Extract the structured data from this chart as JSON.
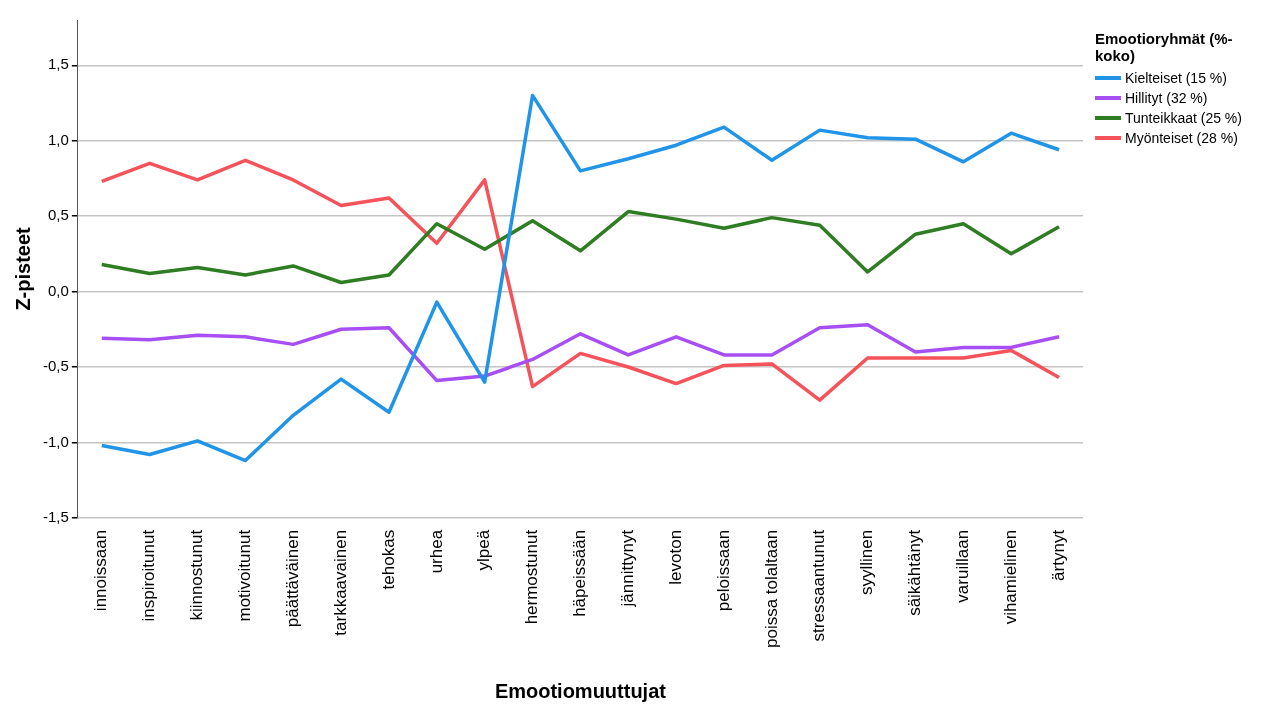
{
  "chart_data": {
    "type": "line",
    "xlabel": "Emootiomuuttujat",
    "ylabel": "Z-pisteet",
    "legend_title": "Emootioryhmät (%-koko)",
    "legend": "top right",
    "grid": "y",
    "marker": "none",
    "line_style": "solid",
    "categories": [
      "innoissaan",
      "inspiroitunut",
      "kiinnostunut",
      "motivoitunut",
      "päättäväinen",
      "tarkkaavainen",
      "tehokas",
      "urhea",
      "ylpeä",
      "hermostunut",
      "häpeissään",
      "jännittynyt",
      "levoton",
      "peloissaan",
      "poissa tolaltaan",
      "stressaantunut",
      "syyllinen",
      "säikähtänyt",
      "varuillaan",
      "vihamielinen",
      "ärtynyt"
    ],
    "ylim": [
      -1.5,
      1.8
    ],
    "yticks": [
      {
        "value": -1.5,
        "label": "-1,5"
      },
      {
        "value": -1,
        "label": "-1,0"
      },
      {
        "value": -0.5,
        "label": "-0,5"
      },
      {
        "value": 0,
        "label": "0,0"
      },
      {
        "value": 0.5,
        "label": "0,5"
      },
      {
        "value": 1,
        "label": "1,0"
      },
      {
        "value": 1.5,
        "label": "1,5"
      }
    ],
    "series": [
      {
        "name": "Kielteiset (15 %)",
        "color": "#1f94e8",
        "values": [
          -1.02,
          -1.08,
          -0.99,
          -1.12,
          -0.82,
          -0.58,
          -0.8,
          -0.07,
          -0.6,
          1.3,
          0.8,
          0.88,
          0.97,
          1.09,
          0.87,
          1.07,
          1.02,
          1.01,
          0.86,
          1.05,
          0.94
        ]
      },
      {
        "name": "Hillityt (32 %)",
        "color": "#a84ef5",
        "values": [
          -0.31,
          -0.32,
          -0.29,
          -0.3,
          -0.35,
          -0.25,
          -0.24,
          -0.59,
          -0.56,
          -0.45,
          -0.28,
          -0.42,
          -0.3,
          -0.42,
          -0.42,
          -0.24,
          -0.22,
          -0.4,
          -0.37,
          -0.37,
          -0.3
        ]
      },
      {
        "name": "Tunteikkaat (25 %)",
        "color": "#2e7d22",
        "values": [
          0.18,
          0.12,
          0.16,
          0.11,
          0.17,
          0.06,
          0.11,
          0.45,
          0.28,
          0.47,
          0.27,
          0.53,
          0.48,
          0.42,
          0.49,
          0.44,
          0.13,
          0.38,
          0.45,
          0.25,
          0.43
        ]
      },
      {
        "name": "Myönteiset (28 %)",
        "color": "#f5525a",
        "values": [
          0.73,
          0.85,
          0.74,
          0.87,
          0.74,
          0.57,
          0.62,
          0.32,
          0.74,
          -0.63,
          -0.41,
          -0.5,
          -0.61,
          -0.49,
          -0.48,
          -0.72,
          -0.44,
          -0.44,
          -0.44,
          -0.39,
          -0.57
        ]
      }
    ]
  }
}
